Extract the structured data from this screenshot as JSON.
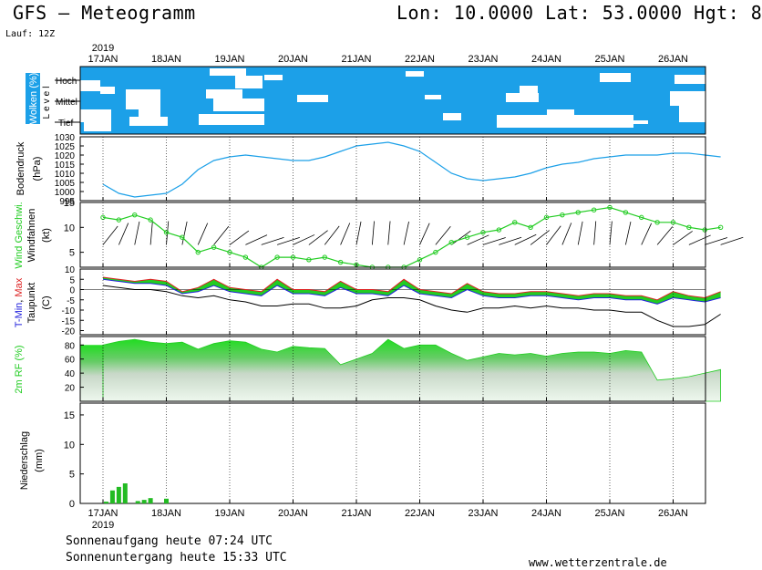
{
  "header": {
    "title": "GFS – Meteogramm",
    "position": "Lon: 10.0000 Lat: 53.0000 Hgt: 8",
    "run": "Lauf: 12Z"
  },
  "footer": {
    "sunrise": "Sonnenaufgang heute 07:24 UTC",
    "sunset": "Sonnenuntergang heute 15:33 UTC",
    "site": "www.wetterzentrale.de"
  },
  "colors": {
    "cloud_fill": "#1ca0e8",
    "pressure_line": "#1ca0e8",
    "wind_line": "#22cc22",
    "tmin": "#2222dd",
    "tmax": "#dd2222",
    "temp_fill": "#22cc22",
    "rh_fill": "#22cc22",
    "precip_bar": "#22bb22",
    "precip_conv": "#dd4422"
  },
  "chart_data": [
    {
      "type": "area",
      "panel": "Wolken",
      "ylabel": "Wolken (%)",
      "side_label": "Level",
      "levels": [
        "Hoch",
        "Mittel",
        "Tief"
      ],
      "x_day_labels": [
        "17JAN",
        "18JAN",
        "19JAN",
        "20JAN",
        "21JAN",
        "22JAN",
        "23JAN",
        "24JAN",
        "25JAN",
        "26JAN"
      ],
      "year_label": "2019"
    },
    {
      "type": "line",
      "panel": "Bodendruck",
      "ylabel": "Bodendruck",
      "unit": "(hPa)",
      "ylim": [
        995,
        1030
      ],
      "yticks": [
        995,
        1000,
        1005,
        1010,
        1015,
        1020,
        1025,
        1030
      ],
      "x_days": [
        0,
        0.25,
        0.5,
        0.75,
        1,
        1.25,
        1.5,
        1.75,
        2,
        2.25,
        2.5,
        2.75,
        3,
        3.25,
        3.5,
        3.75,
        4,
        4.25,
        4.5,
        4.75,
        5,
        5.25,
        5.5,
        5.75,
        6,
        6.25,
        6.5,
        6.75,
        7,
        7.25,
        7.5,
        7.75,
        8,
        8.25,
        8.5,
        8.75,
        9,
        9.25,
        9.5,
        9.75
      ],
      "values": [
        1004,
        999,
        997,
        998,
        999,
        1004,
        1012,
        1017,
        1019,
        1020,
        1019,
        1018,
        1017,
        1017,
        1019,
        1022,
        1025,
        1026,
        1027,
        1025,
        1022,
        1016,
        1010,
        1007,
        1006,
        1007,
        1008,
        1010,
        1013,
        1015,
        1016,
        1018,
        1019,
        1020,
        1020,
        1020,
        1021,
        1021,
        1020,
        1019
      ]
    },
    {
      "type": "line",
      "panel": "Wind",
      "ylabel": "Wind Geschwi.",
      "ylabel2": "Windfahnen",
      "unit": "(kt)",
      "ylim": [
        2,
        15
      ],
      "yticks": [
        5,
        10,
        15
      ],
      "x_days": [
        0,
        0.25,
        0.5,
        0.75,
        1,
        1.25,
        1.5,
        1.75,
        2,
        2.25,
        2.5,
        2.75,
        3,
        3.25,
        3.5,
        3.75,
        4,
        4.25,
        4.5,
        4.75,
        5,
        5.25,
        5.5,
        5.75,
        6,
        6.25,
        6.5,
        6.75,
        7,
        7.25,
        7.5,
        7.75,
        8,
        8.25,
        8.5,
        8.75,
        9,
        9.25,
        9.5,
        9.75
      ],
      "values": [
        12,
        11.5,
        12.5,
        11.5,
        9,
        8,
        5,
        6,
        5,
        4,
        2,
        4,
        4,
        3.5,
        4,
        3,
        2.5,
        2,
        2,
        2,
        3.5,
        5,
        7,
        8,
        9,
        9.5,
        11,
        10,
        12,
        12.5,
        13,
        13.5,
        14,
        13,
        12,
        11,
        11,
        10,
        9.5,
        10
      ]
    },
    {
      "type": "line",
      "panel": "Temperatur",
      "ylabel": "T-Min, Max",
      "ylabel_parts": [
        "T-Min",
        ", ",
        "Max"
      ],
      "ylabel2": "Taupunkt",
      "unit": "(C)",
      "ylim": [
        -22,
        10
      ],
      "yticks": [
        10,
        5,
        0,
        -5,
        -10,
        -15,
        -20
      ],
      "x_days": [
        0,
        0.25,
        0.5,
        0.75,
        1,
        1.25,
        1.5,
        1.75,
        2,
        2.25,
        2.5,
        2.75,
        3,
        3.25,
        3.5,
        3.75,
        4,
        4.25,
        4.5,
        4.75,
        5,
        5.25,
        5.5,
        5.75,
        6,
        6.25,
        6.5,
        6.75,
        7,
        7.25,
        7.5,
        7.75,
        8,
        8.25,
        8.5,
        8.75,
        9,
        9.25,
        9.5,
        9.75
      ],
      "series": [
        {
          "role": "tmax",
          "values": [
            6,
            5,
            4,
            5,
            4,
            -1,
            1,
            5,
            1,
            0,
            -1,
            5,
            0,
            0,
            -1,
            4,
            0,
            0,
            -1,
            5,
            0,
            -1,
            -2,
            3,
            -1,
            -2,
            -2,
            -1,
            -1,
            -2,
            -3,
            -2,
            -2,
            -3,
            -3,
            -5,
            -1,
            -3,
            -4,
            -1
          ]
        },
        {
          "role": "tmin",
          "values": [
            5,
            4,
            3,
            3,
            2,
            -2,
            -1,
            2,
            -1,
            -2,
            -3,
            2,
            -2,
            -2,
            -3,
            1,
            -2,
            -2,
            -3,
            2,
            -2,
            -3,
            -4,
            0,
            -3,
            -4,
            -4,
            -3,
            -3,
            -4,
            -5,
            -4,
            -4,
            -5,
            -5,
            -7,
            -4,
            -5,
            -6,
            -4
          ]
        },
        {
          "role": "dewpoint",
          "values": [
            2,
            1,
            0,
            0,
            -1,
            -3,
            -4,
            -3,
            -5,
            -6,
            -8,
            -8,
            -7,
            -7,
            -9,
            -9,
            -8,
            -5,
            -4,
            -4,
            -5,
            -8,
            -10,
            -11,
            -9,
            -9,
            -8,
            -9,
            -8,
            -9,
            -9,
            -10,
            -10,
            -11,
            -11,
            -15,
            -18,
            -18,
            -17,
            -12
          ]
        }
      ]
    },
    {
      "type": "area",
      "panel": "Feuchte",
      "ylabel": "2m RF (%)",
      "ylim": [
        0,
        92
      ],
      "yticks": [
        20,
        40,
        60,
        80
      ],
      "x_days": [
        0,
        0.25,
        0.5,
        0.75,
        1,
        1.25,
        1.5,
        1.75,
        2,
        2.25,
        2.5,
        2.75,
        3,
        3.25,
        3.5,
        3.75,
        4,
        4.25,
        4.5,
        4.75,
        5,
        5.25,
        5.5,
        5.75,
        6,
        6.25,
        6.5,
        6.75,
        7,
        7.25,
        7.5,
        7.75,
        8,
        8.25,
        8.5,
        8.75,
        9,
        9.25,
        9.5,
        9.75
      ],
      "values": [
        80,
        85,
        88,
        84,
        82,
        84,
        74,
        82,
        86,
        84,
        74,
        70,
        78,
        76,
        75,
        52,
        60,
        68,
        88,
        75,
        80,
        80,
        68,
        58,
        63,
        68,
        66,
        68,
        64,
        68,
        70,
        70,
        68,
        72,
        70,
        30,
        32,
        35,
        40,
        45
      ]
    },
    {
      "type": "bar",
      "panel": "Niederschlag",
      "ylabel": "Niederschlag",
      "unit": "(mm)",
      "ylim": [
        0,
        17
      ],
      "yticks": [
        0,
        5,
        10,
        15
      ],
      "x_days": [
        0.05,
        0.15,
        0.25,
        0.35,
        0.55,
        0.65,
        0.75,
        1.0
      ],
      "values": [
        0.3,
        2.2,
        2.8,
        3.4,
        0.4,
        0.6,
        0.9,
        0.8
      ]
    }
  ]
}
